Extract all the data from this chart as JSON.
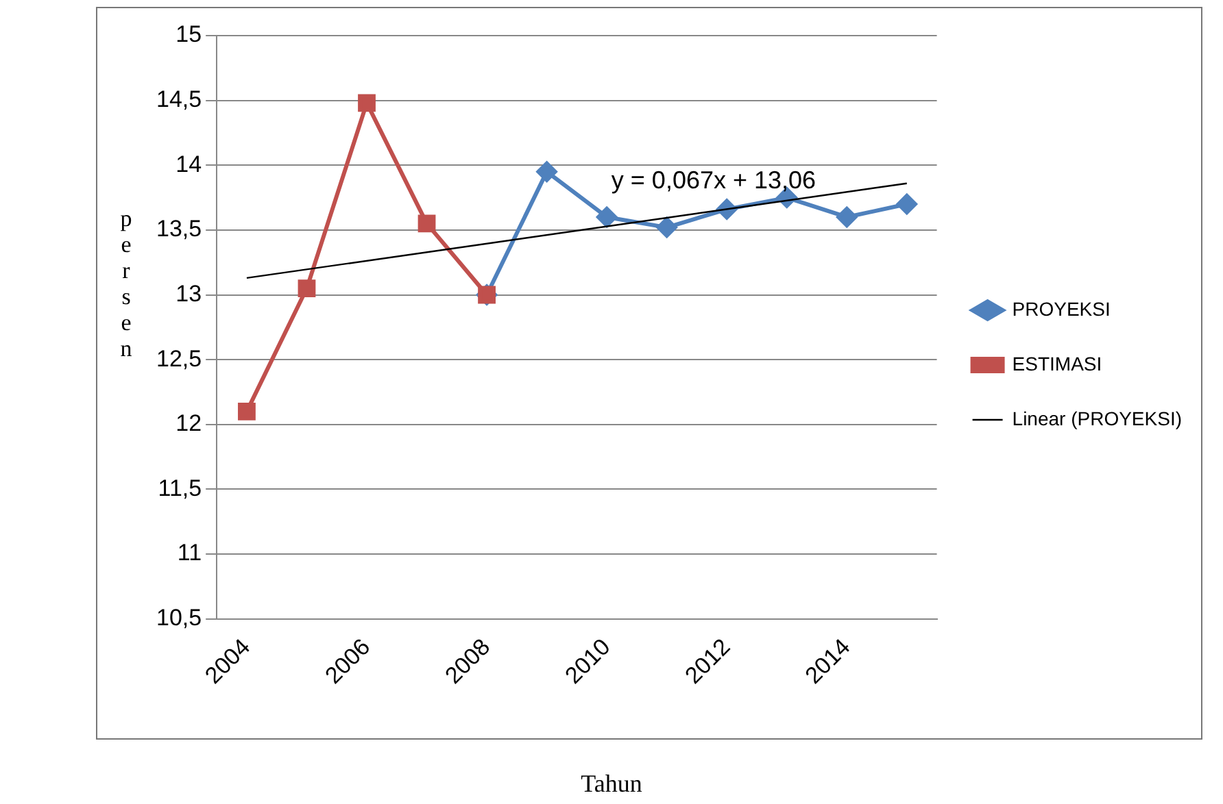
{
  "chart_data": {
    "type": "line",
    "xlabel": "Tahun",
    "ylabel": "persen",
    "categories": [
      "2004",
      null,
      "2006",
      null,
      "2008",
      null,
      "2010",
      null,
      "2012",
      null,
      "2014",
      null
    ],
    "series": [
      {
        "name": "PROYEKSI",
        "color": "#4f81bd",
        "marker": "diamond",
        "values": [
          null,
          null,
          null,
          null,
          13.0,
          13.95,
          13.6,
          13.52,
          13.66,
          13.75,
          13.6,
          13.7
        ]
      },
      {
        "name": "ESTIMASI",
        "color": "#c0504d",
        "marker": "square",
        "values": [
          12.1,
          13.05,
          14.48,
          13.55,
          13.0,
          null,
          null,
          null,
          null,
          null,
          null,
          null
        ]
      },
      {
        "name": "Linear (PROYEKSI)",
        "color": "#000000",
        "marker": "none",
        "values": [
          13.13,
          null,
          null,
          null,
          null,
          null,
          null,
          null,
          null,
          null,
          null,
          13.86
        ]
      }
    ],
    "ylim": [
      10.5,
      15
    ],
    "yticks": [
      {
        "value": 10.5,
        "label": "10,5"
      },
      11,
      {
        "value": 11.5,
        "label": "11,5"
      },
      12,
      {
        "value": 12.5,
        "label": "12,5"
      },
      13,
      {
        "value": 13.5,
        "label": "13,5"
      },
      14,
      {
        "value": 14.5,
        "label": "14,5"
      },
      15
    ],
    "grid": "y",
    "legend": "right",
    "annotations": [
      "y = 0,067x + 13,06"
    ]
  }
}
